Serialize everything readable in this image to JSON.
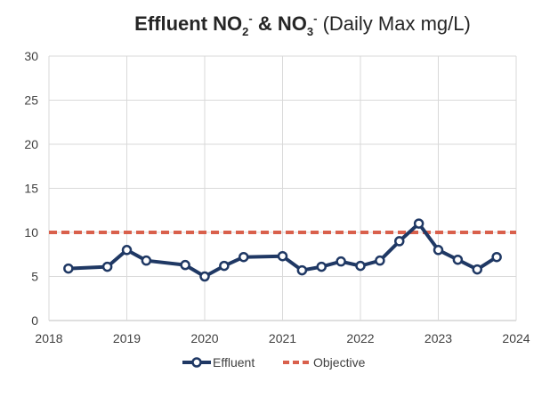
{
  "chart_data": {
    "type": "line",
    "title": {
      "parts": [
        {
          "text": "Effluent NO",
          "style": "bold"
        },
        {
          "text": "2",
          "style": "sub"
        },
        {
          "text": "-",
          "style": "sup"
        },
        {
          "text": " & NO",
          "style": "bold"
        },
        {
          "text": "3",
          "style": "sub"
        },
        {
          "text": "-",
          "style": "sup"
        },
        {
          "text": " (Daily Max mg/L)",
          "style": "normal"
        }
      ]
    },
    "xlim": [
      2018,
      2024
    ],
    "ylim": [
      0,
      30
    ],
    "x_ticks": [
      "2018",
      "2019",
      "2020",
      "2021",
      "2022",
      "2023",
      "2024"
    ],
    "y_ticks": [
      "0",
      "5",
      "10",
      "15",
      "20",
      "25",
      "30"
    ],
    "grid": true,
    "legend_position": "bottom",
    "series": [
      {
        "name": "Effluent",
        "color": "#1f3864",
        "marker": "circle-open",
        "x": [
          2018.25,
          2018.75,
          2019.0,
          2019.25,
          2019.75,
          2020.0,
          2020.25,
          2020.5,
          2021.0,
          2021.25,
          2021.5,
          2021.75,
          2022.0,
          2022.25,
          2022.5,
          2022.75,
          2023.0,
          2023.25,
          2023.5,
          2023.75
        ],
        "y": [
          5.9,
          6.1,
          8.0,
          6.8,
          6.3,
          5.0,
          6.2,
          7.2,
          7.3,
          5.7,
          6.1,
          6.7,
          6.2,
          6.8,
          9.0,
          11.0,
          8.0,
          6.9,
          5.8,
          7.2
        ]
      },
      {
        "name": "Objective",
        "color": "#d9604c",
        "style": "dashed",
        "x": [
          2018,
          2024
        ],
        "y": [
          10,
          10
        ]
      }
    ]
  }
}
